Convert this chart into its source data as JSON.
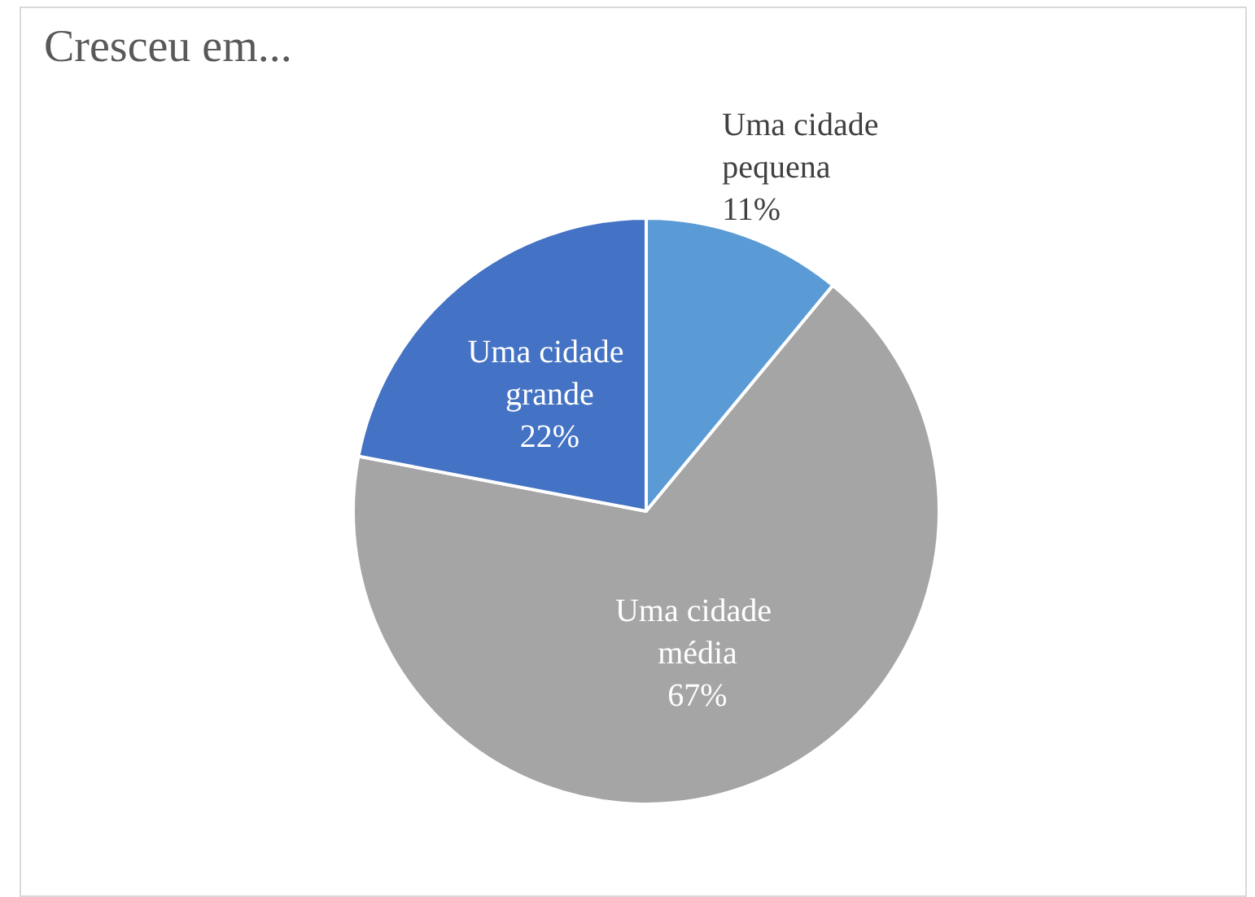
{
  "chart_data": {
    "type": "pie",
    "title": "Cresceu em...",
    "categories": [
      "Uma cidade pequena",
      "Uma cidade média",
      "Uma cidade grande"
    ],
    "values": [
      11,
      67,
      22
    ],
    "value_labels": [
      "11%",
      "67%",
      "22%"
    ],
    "colors": [
      "#5b9bd5",
      "#a5a5a5",
      "#4472c4"
    ],
    "legend": false
  }
}
